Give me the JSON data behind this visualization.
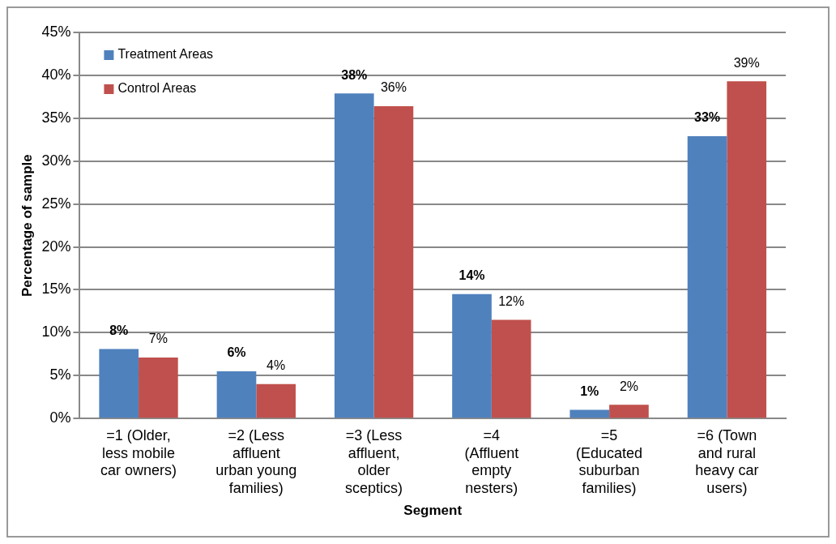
{
  "chart_data": {
    "type": "bar",
    "xlabel": "Segment",
    "ylabel": "Percentage of sample",
    "categories": [
      "=1 (Older, less mobile car owners)",
      "=2 (Less affluent urban young families)",
      "=3 (Less affluent, older sceptics)",
      "=4 (Affluent empty nesters)",
      "=5 (Educated suburban families)",
      "=6 (Town and rural heavy car users)"
    ],
    "series": [
      {
        "name": "Treatment Areas",
        "color": "#4f81bd",
        "values": [
          8.1,
          5.5,
          37.9,
          14.5,
          1.0,
          32.9
        ],
        "value_labels": [
          "8%",
          "6%",
          "38%",
          "14%",
          "1%",
          "33%"
        ]
      },
      {
        "name": "Control Areas",
        "color": "#c0504d",
        "values": [
          7.1,
          4.0,
          36.4,
          11.5,
          1.6,
          39.3
        ],
        "value_labels": [
          "7%",
          "4%",
          "36%",
          "12%",
          "2%",
          "39%"
        ]
      }
    ],
    "ylim": [
      0,
      45
    ],
    "yticks": [
      {
        "value": 0,
        "label": "0%"
      },
      {
        "value": 5,
        "label": "5%"
      },
      {
        "value": 10,
        "label": "10%"
      },
      {
        "value": 15,
        "label": "15%"
      },
      {
        "value": 20,
        "label": "20%"
      },
      {
        "value": 25,
        "label": "25%"
      },
      {
        "value": 30,
        "label": "30%"
      },
      {
        "value": 35,
        "label": "35%"
      },
      {
        "value": 40,
        "label": "40%"
      },
      {
        "value": 45,
        "label": "45%"
      }
    ],
    "grid": "y",
    "legend": "top left"
  }
}
